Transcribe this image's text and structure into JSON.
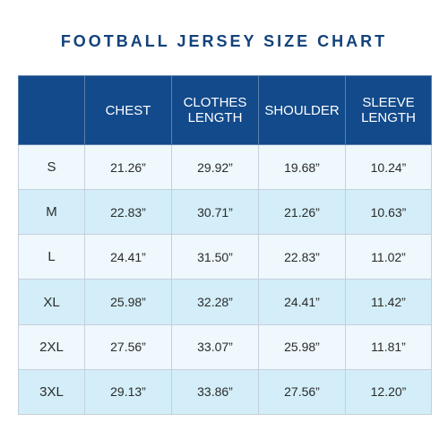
{
  "title": "FOOTBALL JERSEY SIZE CHART",
  "columns": [
    "",
    "CHEST",
    "CLOTHES LENGTH",
    "SHOULDER",
    "SLEEVE LENGTH"
  ],
  "header_lines": {
    "col1": [
      "CHEST"
    ],
    "col2": [
      "CLOTHES",
      "LENGTH"
    ],
    "col3": [
      "SHOULDER"
    ],
    "col4": [
      "SLEEVE",
      "LENGTH"
    ]
  },
  "rows": [
    {
      "size": "S",
      "chest": "21.26”",
      "clothes_length": "29.92”",
      "shoulder": "19.68”",
      "sleeve_length": "10.24”"
    },
    {
      "size": "M",
      "chest": "22.83”",
      "clothes_length": "30.71”",
      "shoulder": "21.26”",
      "sleeve_length": "10.63”"
    },
    {
      "size": "L",
      "chest": "24.41”",
      "clothes_length": "31.50”",
      "shoulder": "22.83”",
      "sleeve_length": "11.02”"
    },
    {
      "size": "XL",
      "chest": "25.98”",
      "clothes_length": "32.28”",
      "shoulder": "24.41”",
      "sleeve_length": "11.42”"
    },
    {
      "size": "2XL",
      "chest": "27.56”",
      "clothes_length": "33.07”",
      "shoulder": "25.98”",
      "sleeve_length": "11.81”"
    },
    {
      "size": "3XL",
      "chest": "29.13”",
      "clothes_length": "33.86”",
      "shoulder": "27.56”",
      "sleeve_length": "12.20”"
    }
  ],
  "colors": {
    "header_bg": "#124a8b",
    "title": "#13427a",
    "row_light": "#eef8fd",
    "row_dark": "#d3eef8"
  }
}
